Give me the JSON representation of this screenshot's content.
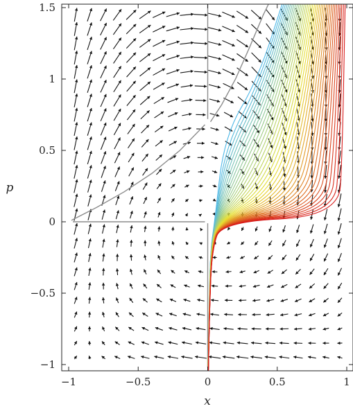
{
  "chart_data": {
    "type": "line",
    "title": "",
    "xlabel": "x",
    "ylabel": "p",
    "xlim": [
      -1,
      1
    ],
    "ylim": [
      -1.05,
      1.55
    ],
    "x_ticks": [
      -1,
      -0.5,
      0,
      0.5,
      1
    ],
    "x_tick_labels": [
      "−1",
      "−0.5",
      "0",
      "0.5",
      "1"
    ],
    "y_ticks": [
      -1,
      -0.5,
      0,
      0.5,
      1,
      1.5
    ],
    "y_tick_labels": [
      "−1",
      "−0.5",
      "0",
      "0.5",
      "1",
      "1.5"
    ],
    "grid": false,
    "legend": "none",
    "background_field": "vector-field arrows",
    "separatrix": {
      "color": "#8c8c8c",
      "segments": [
        {
          "points": [
            [
              -0.98,
              0.01
            ],
            [
              -0.8,
              0.1
            ],
            [
              -0.6,
              0.21
            ],
            [
              -0.4,
              0.34
            ],
            [
              -0.2,
              0.5
            ],
            [
              -0.02,
              0.68
            ]
          ]
        },
        {
          "points": [
            [
              -0.97,
              0.0
            ],
            [
              -0.02,
              0.0
            ]
          ]
        },
        {
          "points": [
            [
              0.02,
              0.7
            ],
            [
              0.1,
              0.82
            ],
            [
              0.2,
              1.0
            ],
            [
              0.3,
              1.22
            ],
            [
              0.4,
              1.45
            ],
            [
              0.45,
              1.55
            ]
          ]
        },
        {
          "points": [
            [
              0.0,
              0.72
            ],
            [
              0.0,
              1.55
            ]
          ]
        },
        {
          "points": [
            [
              0.0,
              -0.01
            ],
            [
              0.0,
              -1.02
            ]
          ]
        }
      ]
    },
    "trajectory_family": {
      "count": 38,
      "color_start": "#4db8e8",
      "color_mid": "#e8e030",
      "color_end": "#d81818",
      "x_left_at_top": 0.56,
      "x_right_at_top": 0.99
    }
  }
}
